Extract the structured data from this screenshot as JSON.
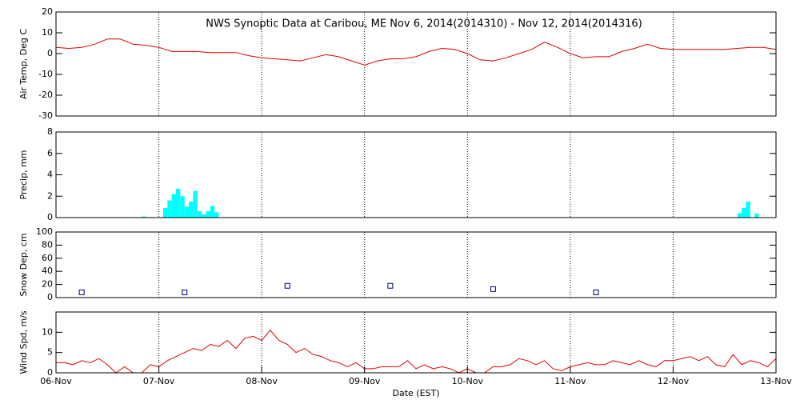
{
  "chart_data": [
    {
      "type": "line",
      "title": "NWS Synoptic Data at Caribou, ME   Nov  6, 2014(2014310) - Nov 12, 2014(2014316)",
      "ylabel": "Air Temp, Deg C",
      "color": "#e00000",
      "x": [
        0,
        3,
        6,
        9,
        12,
        15,
        18,
        21,
        24,
        27,
        30,
        33,
        36,
        39,
        42,
        45,
        48,
        51,
        54,
        57,
        60,
        63,
        66,
        69,
        72,
        75,
        78,
        81,
        84,
        87,
        90,
        93,
        96,
        99,
        102,
        105,
        108,
        111,
        114,
        117,
        120,
        123,
        126,
        129,
        132,
        135,
        138,
        141,
        144,
        147,
        150,
        153,
        156,
        159,
        162,
        165,
        168
      ],
      "values": [
        3,
        2.5,
        3,
        4.5,
        7,
        7,
        4.5,
        4,
        3,
        1,
        1,
        1,
        0.5,
        0.5,
        0.5,
        -1,
        -2,
        -2.5,
        -3,
        -3.5,
        -2,
        -0.5,
        -1.5,
        -3.5,
        -5.5,
        -3.5,
        -2.5,
        -2.5,
        -1.5,
        1,
        2.5,
        2,
        0,
        -3,
        -3.5,
        -2,
        0,
        2,
        5.5,
        3,
        0,
        -2,
        -1.5,
        -1.5,
        1,
        2.5,
        4.5,
        2.5,
        2,
        2,
        2,
        2,
        2,
        2.5,
        3,
        3,
        2
      ],
      "xlim": [
        0,
        168
      ],
      "ylim": [
        -30,
        20
      ],
      "yticks": [
        -30,
        -20,
        -10,
        0,
        10,
        20
      ]
    },
    {
      "type": "bar",
      "ylabel": "Precip, mm",
      "color": "#00ffff",
      "x": [
        20,
        25,
        26,
        27,
        28,
        29,
        30,
        31,
        32,
        33,
        34,
        35,
        36,
        37,
        159,
        160,
        161,
        163
      ],
      "values": [
        0.1,
        0.9,
        1.6,
        2.2,
        2.7,
        2.0,
        1.0,
        1.5,
        2.5,
        0.6,
        0.3,
        0.6,
        1.1,
        0.5,
        0.4,
        0.9,
        1.5,
        0.4
      ],
      "xlim": [
        0,
        168
      ],
      "ylim": [
        0,
        8
      ],
      "yticks": [
        0,
        2,
        4,
        6,
        8
      ]
    },
    {
      "type": "scatter",
      "ylabel": "Snow Dep, cm",
      "color": "#000080",
      "x": [
        6,
        30,
        54,
        78,
        102,
        126
      ],
      "values": [
        8,
        8,
        18,
        18,
        13,
        8
      ],
      "xlim": [
        0,
        168
      ],
      "ylim": [
        0,
        100
      ],
      "yticks": [
        0,
        20,
        40,
        60,
        80,
        100
      ]
    },
    {
      "type": "line",
      "ylabel": "Wind Spd, m/s",
      "xlabel": "Date (EST)",
      "color": "#e00000",
      "x": [
        0,
        2,
        4,
        6,
        8,
        10,
        12,
        14,
        16,
        18,
        20,
        22,
        24,
        26,
        28,
        30,
        32,
        34,
        36,
        38,
        40,
        42,
        44,
        46,
        48,
        50,
        52,
        54,
        56,
        58,
        60,
        62,
        64,
        66,
        68,
        70,
        72,
        74,
        76,
        78,
        80,
        82,
        84,
        86,
        88,
        90,
        92,
        94,
        96,
        98,
        100,
        102,
        104,
        106,
        108,
        110,
        112,
        114,
        116,
        118,
        120,
        122,
        124,
        126,
        128,
        130,
        132,
        134,
        136,
        138,
        140,
        142,
        144,
        146,
        148,
        150,
        152,
        154,
        156,
        158,
        160,
        162,
        164,
        166,
        168
      ],
      "values": [
        2.5,
        2.5,
        2,
        3,
        2.5,
        3.5,
        2,
        0,
        1.5,
        0,
        0,
        2,
        1.5,
        3,
        4,
        5,
        6,
        5.5,
        7,
        6.5,
        8,
        6,
        8.5,
        9,
        8,
        10.5,
        8,
        7,
        5,
        6,
        4.5,
        4,
        3,
        2.5,
        1.5,
        2.5,
        1,
        1,
        1.5,
        1.5,
        1.5,
        3,
        1,
        2,
        1,
        1.5,
        1,
        0,
        1,
        0,
        0,
        1.5,
        1.5,
        2,
        3.5,
        3,
        2,
        3,
        1,
        0.5,
        1.5,
        2,
        2.5,
        2,
        2,
        3,
        2.5,
        2,
        3,
        2,
        1.5,
        3,
        3,
        3.5,
        4,
        3,
        4,
        2,
        1.5,
        4.5,
        2,
        3,
        2.5,
        1.5,
        3.5
      ],
      "xlim": [
        0,
        168
      ],
      "ylim": [
        0,
        15
      ],
      "yticks": [
        0,
        5,
        10
      ],
      "xticks": [
        {
          "value": 0,
          "label": "06-Nov"
        },
        {
          "value": 24,
          "label": "07-Nov"
        },
        {
          "value": 48,
          "label": "08-Nov"
        },
        {
          "value": 72,
          "label": "09-Nov"
        },
        {
          "value": 96,
          "label": "10-Nov"
        },
        {
          "value": 120,
          "label": "11-Nov"
        },
        {
          "value": 144,
          "label": "12-Nov"
        },
        {
          "value": 168,
          "label": "13-Nov"
        }
      ]
    }
  ]
}
